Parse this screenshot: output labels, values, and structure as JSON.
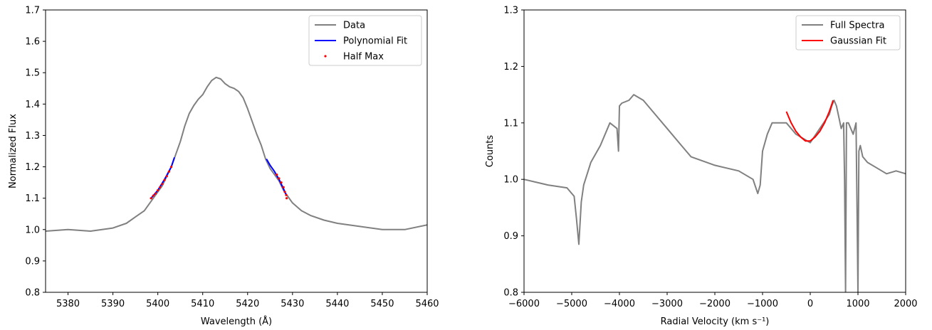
{
  "chart_data": [
    {
      "type": "line",
      "xlabel": "Wavelength (Å)",
      "ylabel": "Normalized Flux",
      "xlim": [
        5375,
        5460
      ],
      "ylim": [
        0.8,
        1.7
      ],
      "xticks": [
        5380,
        5390,
        5400,
        5410,
        5420,
        5430,
        5440,
        5450,
        5460
      ],
      "yticks": [
        0.8,
        0.9,
        1.0,
        1.1,
        1.2,
        1.3,
        1.4,
        1.5,
        1.6,
        1.7
      ],
      "grid": false,
      "legend_position": "upper right",
      "series": [
        {
          "name": "Data",
          "kind": "line",
          "color": "#808080",
          "x": [
            5375,
            5380,
            5385,
            5390,
            5393,
            5395,
            5397,
            5399,
            5401,
            5403,
            5404,
            5405,
            5406,
            5407,
            5408,
            5409,
            5410,
            5411,
            5412,
            5413,
            5414,
            5415,
            5416,
            5417,
            5418,
            5419,
            5420,
            5421,
            5422,
            5423,
            5424,
            5425,
            5426,
            5427,
            5428,
            5429,
            5430,
            5432,
            5434,
            5437,
            5440,
            5445,
            5450,
            5455,
            5460
          ],
          "y": [
            0.995,
            1.0,
            0.995,
            1.005,
            1.02,
            1.04,
            1.06,
            1.1,
            1.14,
            1.2,
            1.24,
            1.28,
            1.33,
            1.37,
            1.395,
            1.415,
            1.43,
            1.455,
            1.475,
            1.485,
            1.48,
            1.465,
            1.455,
            1.45,
            1.44,
            1.42,
            1.385,
            1.345,
            1.305,
            1.27,
            1.225,
            1.195,
            1.175,
            1.155,
            1.125,
            1.105,
            1.085,
            1.06,
            1.045,
            1.03,
            1.02,
            1.01,
            1.0,
            1.0,
            1.015
          ]
        },
        {
          "name": "Polynomial Fit",
          "kind": "line",
          "color": "#0000ff",
          "segments": [
            {
              "x": [
                5398.5,
                5400,
                5401.5,
                5403,
                5403.7
              ],
              "y": [
                1.1,
                1.125,
                1.16,
                1.2,
                1.23
              ]
            },
            {
              "x": [
                5424.2,
                5425,
                5426,
                5427,
                5428,
                5428.6
              ],
              "y": [
                1.225,
                1.205,
                1.185,
                1.16,
                1.13,
                1.11
              ]
            }
          ]
        },
        {
          "name": "Half Max",
          "kind": "scatter",
          "color": "#ff0000",
          "x": [
            5398.5,
            5399,
            5399.5,
            5400,
            5400.5,
            5401,
            5401.5,
            5402,
            5402.5,
            5403,
            5426.5,
            5427,
            5427.5,
            5428,
            5428.3,
            5428.6,
            5428.7
          ],
          "y": [
            1.1,
            1.108,
            1.115,
            1.125,
            1.135,
            1.145,
            1.158,
            1.17,
            1.185,
            1.2,
            1.175,
            1.163,
            1.15,
            1.135,
            1.12,
            1.11,
            1.1
          ]
        }
      ]
    },
    {
      "type": "line",
      "xlabel": "Radial Velocity (km s⁻¹)",
      "ylabel": "Counts",
      "xlim": [
        -6000,
        2000
      ],
      "ylim": [
        0.8,
        1.3
      ],
      "xticks": [
        -6000,
        -5000,
        -4000,
        -3000,
        -2000,
        -1000,
        0,
        1000,
        2000
      ],
      "xticklabels": [
        "−6000",
        "−5000",
        "−4000",
        "−3000",
        "−2000",
        "−1000",
        "0",
        "1000",
        "2000"
      ],
      "yticks": [
        0.8,
        0.9,
        1.0,
        1.1,
        1.2,
        1.3
      ],
      "grid": false,
      "legend_position": "upper right",
      "series": [
        {
          "name": "Full Spectra",
          "kind": "line",
          "color": "#808080",
          "x": [
            -6000,
            -5500,
            -5100,
            -4950,
            -4900,
            -4850,
            -4800,
            -4750,
            -4600,
            -4400,
            -4200,
            -4050,
            -4020,
            -4000,
            -3950,
            -3800,
            -3700,
            -3500,
            -3300,
            -3000,
            -2700,
            -2500,
            -2000,
            -1500,
            -1200,
            -1100,
            -1050,
            -1000,
            -900,
            -800,
            -700,
            -500,
            -300,
            -100,
            0,
            200,
            400,
            450,
            500,
            550,
            600,
            650,
            700,
            720,
            740,
            760,
            800,
            900,
            960,
            980,
            1000,
            1020,
            1050,
            1100,
            1200,
            1400,
            1600,
            1800,
            2000
          ],
          "y": [
            1.0,
            0.99,
            0.985,
            0.97,
            0.93,
            0.885,
            0.96,
            0.99,
            1.03,
            1.06,
            1.1,
            1.09,
            1.05,
            1.13,
            1.135,
            1.14,
            1.15,
            1.14,
            1.12,
            1.09,
            1.06,
            1.04,
            1.025,
            1.015,
            1.0,
            0.975,
            0.99,
            1.05,
            1.08,
            1.1,
            1.1,
            1.1,
            1.08,
            1.07,
            1.065,
            1.09,
            1.115,
            1.13,
            1.14,
            1.13,
            1.11,
            1.09,
            1.1,
            1.0,
            0.8,
            1.1,
            1.1,
            1.08,
            1.1,
            0.95,
            0.8,
            1.05,
            1.06,
            1.04,
            1.03,
            1.02,
            1.01,
            1.015,
            1.01
          ]
        },
        {
          "name": "Gaussian Fit",
          "kind": "line",
          "color": "#ff0000",
          "x": [
            -500,
            -400,
            -300,
            -200,
            -100,
            0,
            100,
            200,
            300,
            400,
            480
          ],
          "y": [
            1.12,
            1.1,
            1.085,
            1.075,
            1.068,
            1.068,
            1.075,
            1.085,
            1.1,
            1.12,
            1.14
          ]
        }
      ]
    }
  ]
}
